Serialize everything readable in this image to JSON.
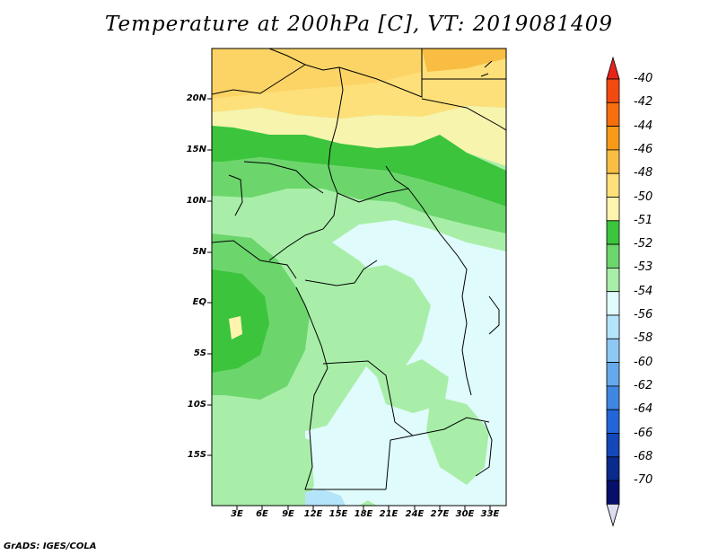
{
  "title": "Temperature at 200hPa [C], VT: 2019081409",
  "credit": "GrADS: IGES/COLA",
  "map": {
    "lat_labels": [
      "20N",
      "15N",
      "10N",
      "5N",
      "EQ",
      "5S",
      "10S",
      "15S"
    ],
    "lon_labels": [
      "3E",
      "6E",
      "9E",
      "12E",
      "15E",
      "18E",
      "21E",
      "24E",
      "27E",
      "30E",
      "33E"
    ]
  },
  "colorbar": {
    "labels": [
      "-40",
      "-42",
      "-44",
      "-46",
      "-48",
      "-50",
      "-51",
      "-52",
      "-53",
      "-54",
      "-56",
      "-58",
      "-60",
      "-62",
      "-64",
      "-66",
      "-68",
      "-70"
    ],
    "colors": [
      "#e8231a",
      "#f24a10",
      "#f56f0e",
      "#f79a1a",
      "#f8bd42",
      "#fde07a",
      "#fff4ad",
      "#3cc43c",
      "#6cd66c",
      "#a8eea8",
      "#e0fbfb",
      "#b4e4fa",
      "#8ec8f2",
      "#66a8ec",
      "#4087e2",
      "#2466d8",
      "#1448b8",
      "#0a2a8c",
      "#06106a",
      "#dcdcf4"
    ]
  }
}
